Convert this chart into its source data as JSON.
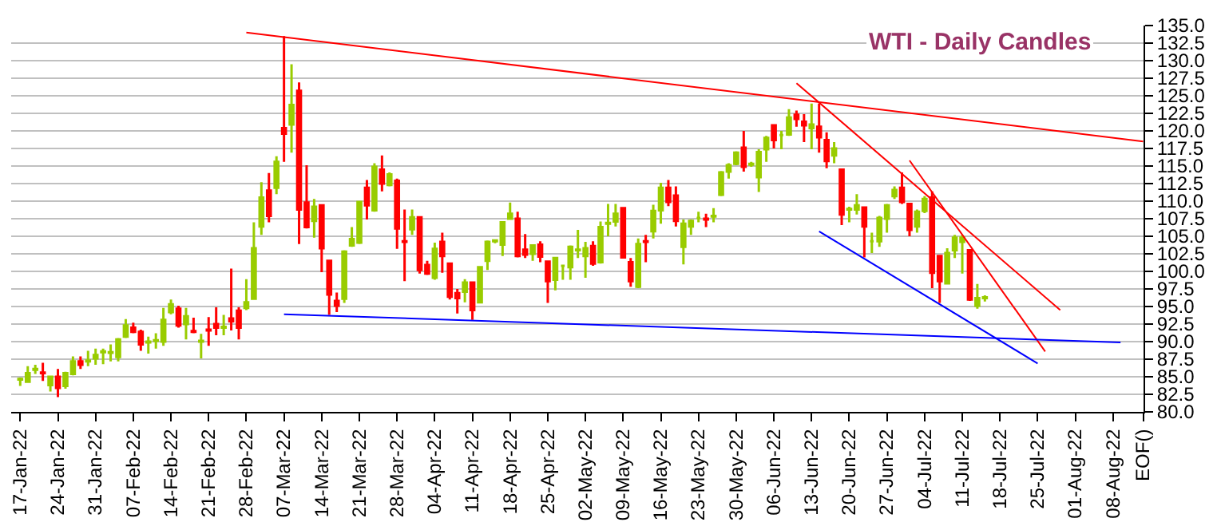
{
  "chart_data": {
    "type": "candlestick",
    "title": "WTI - Daily Candles",
    "categories": [
      "17-Jan-22",
      null,
      null,
      null,
      null,
      "24-Jan-22",
      null,
      null,
      null,
      null,
      "31-Jan-22",
      null,
      null,
      null,
      null,
      "07-Feb-22",
      null,
      null,
      null,
      null,
      "14-Feb-22",
      null,
      null,
      null,
      null,
      "21-Feb-22",
      null,
      null,
      null,
      null,
      "28-Feb-22",
      null,
      null,
      null,
      null,
      "07-Mar-22",
      null,
      null,
      null,
      null,
      "14-Mar-22",
      null,
      null,
      null,
      null,
      "21-Mar-22",
      null,
      null,
      null,
      null,
      "28-Mar-22",
      null,
      null,
      null,
      null,
      "04-Apr-22",
      null,
      null,
      null,
      null,
      "11-Apr-22",
      null,
      null,
      null,
      null,
      "18-Apr-22",
      null,
      null,
      null,
      null,
      "25-Apr-22",
      null,
      null,
      null,
      null,
      "02-May-22",
      null,
      null,
      null,
      null,
      "09-May-22",
      null,
      null,
      null,
      null,
      "16-May-22",
      null,
      null,
      null,
      null,
      "23-May-22",
      null,
      null,
      null,
      null,
      "30-May-22",
      null,
      null,
      null,
      null,
      "06-Jun-22",
      null,
      null,
      null,
      null,
      "13-Jun-22",
      null,
      null,
      null,
      null,
      "20-Jun-22",
      null,
      null,
      null,
      null,
      "27-Jun-22",
      null,
      null,
      null,
      null,
      "04-Jul-22",
      null,
      null,
      null,
      null,
      "11-Jul-22",
      null,
      null,
      null,
      null,
      "18-Jul-22",
      null,
      null,
      null,
      null,
      "25-Jul-22",
      null,
      null,
      null,
      null,
      "01-Aug-22",
      null,
      null,
      null,
      null,
      "08-Aug-22",
      null,
      null,
      null,
      "EOF()"
    ],
    "ohlc": [
      [
        84.6,
        84.9,
        83.7,
        84.7
      ],
      [
        84.3,
        86.5,
        84.2,
        85.5
      ],
      [
        86.0,
        86.7,
        85.4,
        86.1
      ],
      [
        85.6,
        87.0,
        84.4,
        85.5
      ],
      [
        83.8,
        85.1,
        82.9,
        85.0
      ],
      [
        85.0,
        86.1,
        82.1,
        83.4
      ],
      [
        83.7,
        85.7,
        83.3,
        85.5
      ],
      [
        85.4,
        87.9,
        85.2,
        87.2
      ],
      [
        87.2,
        87.9,
        86.1,
        86.7
      ],
      [
        87.2,
        88.7,
        86.5,
        87.3
      ],
      [
        87.6,
        89.0,
        86.7,
        88.1
      ],
      [
        88.5,
        89.0,
        86.8,
        88.6
      ],
      [
        88.4,
        89.6,
        87.2,
        88.5
      ],
      [
        87.8,
        90.5,
        87.2,
        90.3
      ],
      [
        90.7,
        93.2,
        90.5,
        92.3
      ],
      [
        92.0,
        92.7,
        91.2,
        91.4
      ],
      [
        91.4,
        91.7,
        88.7,
        89.6
      ],
      [
        89.9,
        90.7,
        88.3,
        90.0
      ],
      [
        90.1,
        91.2,
        89.0,
        90.2
      ],
      [
        90.0,
        94.8,
        89.4,
        93.1
      ],
      [
        94.2,
        96.0,
        93.9,
        95.3
      ],
      [
        94.7,
        95.1,
        92.0,
        92.3
      ],
      [
        92.5,
        94.8,
        90.3,
        93.6
      ],
      [
        91.5,
        93.4,
        91.2,
        91.4
      ],
      [
        90.0,
        91.1,
        87.6,
        90.1
      ],
      [
        91.7,
        93.5,
        89.4,
        91.6
      ],
      [
        92.5,
        94.9,
        90.9,
        92.0
      ],
      [
        92.0,
        93.8,
        90.9,
        92.1
      ],
      [
        93.3,
        100.4,
        91.6,
        92.9
      ],
      [
        94.4,
        94.9,
        90.3,
        92.0
      ],
      [
        94.8,
        98.9,
        94.5,
        95.6
      ],
      [
        96.1,
        107.0,
        96.1,
        103.3
      ],
      [
        106.4,
        112.7,
        105.2,
        110.5
      ],
      [
        111.5,
        114.0,
        107.0,
        107.9
      ],
      [
        111.9,
        116.4,
        111.0,
        115.6
      ],
      [
        120.4,
        133.5,
        115.6,
        119.6
      ],
      [
        120.9,
        129.5,
        116.9,
        123.7
      ],
      [
        125.7,
        126.9,
        103.9,
        108.8
      ],
      [
        109.8,
        115.1,
        106.1,
        106.3
      ],
      [
        107.2,
        110.3,
        104.8,
        109.2
      ],
      [
        109.4,
        109.5,
        99.9,
        103.3
      ],
      [
        101.5,
        101.6,
        93.8,
        96.7
      ],
      [
        95.8,
        97.0,
        94.2,
        95.1
      ],
      [
        96.1,
        103.0,
        95.5,
        102.8
      ],
      [
        103.7,
        106.3,
        103.5,
        104.6
      ],
      [
        104.1,
        110.0,
        103.9,
        109.9
      ],
      [
        111.9,
        113.0,
        107.4,
        109.4
      ],
      [
        108.7,
        115.4,
        108.5,
        114.9
      ],
      [
        114.5,
        116.5,
        111.4,
        112.5
      ],
      [
        112.3,
        114.1,
        112.1,
        113.8
      ],
      [
        112.9,
        113.2,
        103.2,
        106.1
      ],
      [
        104.3,
        108.8,
        98.6,
        104.2
      ],
      [
        106.0,
        108.8,
        105.2,
        107.7
      ],
      [
        107.7,
        107.8,
        99.7,
        100.2
      ],
      [
        100.9,
        101.5,
        99.5,
        99.7
      ],
      [
        99.1,
        104.1,
        98.8,
        103.2
      ],
      [
        104.2,
        105.5,
        99.8,
        102.2
      ],
      [
        101.1,
        101.2,
        96.0,
        96.4
      ],
      [
        96.9,
        97.5,
        94.0,
        96.2
      ],
      [
        97.1,
        98.9,
        95.6,
        98.4
      ],
      [
        98.4,
        98.5,
        93.1,
        94.5
      ],
      [
        95.6,
        100.7,
        95.5,
        100.6
      ],
      [
        101.5,
        104.4,
        100.2,
        104.2
      ],
      [
        104.3,
        104.4,
        104.0,
        104.4
      ],
      [
        103.8,
        107.1,
        102.2,
        107.0
      ],
      [
        107.5,
        109.8,
        107.4,
        108.2
      ],
      [
        107.5,
        108.5,
        102.0,
        102.2
      ],
      [
        103.1,
        105.3,
        101.9,
        102.4
      ],
      [
        102.5,
        103.8,
        101.5,
        103.7
      ],
      [
        103.8,
        104.3,
        101.3,
        102.1
      ],
      [
        101.4,
        101.5,
        95.5,
        98.6
      ],
      [
        98.8,
        102.0,
        97.3,
        101.9
      ],
      [
        100.8,
        100.9,
        98.8,
        100.8
      ],
      [
        100.6,
        103.7,
        98.8,
        103.5
      ],
      [
        103.0,
        105.9,
        101.9,
        103.1
      ],
      [
        102.2,
        104.2,
        99.1,
        103.3
      ],
      [
        103.6,
        104.3,
        100.8,
        101.1
      ],
      [
        101.3,
        107.1,
        101.1,
        106.3
      ],
      [
        106.8,
        109.6,
        105.0,
        106.9
      ],
      [
        107.1,
        109.6,
        106.4,
        108.2
      ],
      [
        109.0,
        109.1,
        101.9,
        102.0
      ],
      [
        101.3,
        101.9,
        97.8,
        98.6
      ],
      [
        97.8,
        104.7,
        97.6,
        103.9
      ],
      [
        104.3,
        105.2,
        101.3,
        104.2
      ],
      [
        105.7,
        109.5,
        104.7,
        108.6
      ],
      [
        108.7,
        112.6,
        106.8,
        111.9
      ],
      [
        111.9,
        113.0,
        109.3,
        109.9
      ],
      [
        110.8,
        112.1,
        106.4,
        107.2
      ],
      [
        103.5,
        107.4,
        101.0,
        106.8
      ],
      [
        106.4,
        107.4,
        105.2,
        107.2
      ],
      [
        107.6,
        108.5,
        107.0,
        107.6
      ],
      [
        107.5,
        108.2,
        106.3,
        107.4
      ],
      [
        107.8,
        109.0,
        107.0,
        107.9
      ],
      [
        110.9,
        114.3,
        110.7,
        114.1
      ],
      [
        114.2,
        115.4,
        113.2,
        115.1
      ],
      [
        115.3,
        117.1,
        115.1,
        116.9
      ],
      [
        117.6,
        120.0,
        114.2,
        114.9
      ],
      [
        115.2,
        115.6,
        114.9,
        115.3
      ],
      [
        113.4,
        117.4,
        111.3,
        117.0
      ],
      [
        117.4,
        119.3,
        115.6,
        119.0
      ],
      [
        120.8,
        120.9,
        117.5,
        118.7
      ],
      [
        119.4,
        120.0,
        117.4,
        119.4
      ],
      [
        119.5,
        123.1,
        119.3,
        121.9
      ],
      [
        122.3,
        122.9,
        120.6,
        121.7
      ],
      [
        121.3,
        122.4,
        118.4,
        120.8
      ],
      [
        120.4,
        123.9,
        117.4,
        120.9
      ],
      [
        120.6,
        123.9,
        116.9,
        119.1
      ],
      [
        118.7,
        119.8,
        114.7,
        115.7
      ],
      [
        116.5,
        118.4,
        115.4,
        117.5
      ],
      [
        114.5,
        114.6,
        106.6,
        108.1
      ],
      [
        108.8,
        109.2,
        107.0,
        108.9
      ],
      [
        108.8,
        111.0,
        108.1,
        109.4
      ],
      [
        109.1,
        109.2,
        102.0,
        106.4
      ],
      [
        104.3,
        105.5,
        102.6,
        104.3
      ],
      [
        104.3,
        107.9,
        103.5,
        107.6
      ],
      [
        107.5,
        109.6,
        105.5,
        109.4
      ],
      [
        110.7,
        112.1,
        110.3,
        111.6
      ],
      [
        111.9,
        114.1,
        109.6,
        109.9
      ],
      [
        109.6,
        109.7,
        105.0,
        105.9
      ],
      [
        106.4,
        108.8,
        105.5,
        108.5
      ],
      [
        108.6,
        110.7,
        108.3,
        110.3
      ],
      [
        110.5,
        111.4,
        97.6,
        99.8
      ],
      [
        102.2,
        102.3,
        95.5,
        98.6
      ],
      [
        98.3,
        103.3,
        98.2,
        102.6
      ],
      [
        103.0,
        105.2,
        101.9,
        104.8
      ],
      [
        104.2,
        105.2,
        99.7,
        104.8
      ],
      [
        103.0,
        103.1,
        95.8,
        96.0
      ],
      [
        95.1,
        98.2,
        94.7,
        96.2
      ],
      [
        96.2,
        96.6,
        95.7,
        96.3
      ],
      null,
      null,
      null,
      null,
      null,
      null,
      null,
      null,
      null,
      null,
      null,
      null,
      null,
      null,
      null,
      null,
      null,
      null,
      null,
      null,
      null
    ],
    "colors": [
      "#99cc00",
      "#99cc00",
      "#99cc00",
      "#ff0000",
      "#99cc00",
      "#ff0000",
      "#99cc00",
      "#99cc00",
      "#ff0000",
      "#99cc00",
      "#99cc00",
      "#99cc00",
      "#99cc00",
      "#99cc00",
      "#99cc00",
      "#ff0000",
      "#ff0000",
      "#99cc00",
      "#99cc00",
      "#99cc00",
      "#99cc00",
      "#ff0000",
      "#99cc00",
      "#ff0000",
      "#99cc00",
      "#ff0000",
      "#ff0000",
      "#99cc00",
      "#ff0000",
      "#ff0000",
      "#99cc00",
      "#99cc00",
      "#99cc00",
      "#ff0000",
      "#99cc00",
      "#ff0000",
      "#99cc00",
      "#ff0000",
      "#ff0000",
      "#99cc00",
      "#ff0000",
      "#ff0000",
      "#ff0000",
      "#99cc00",
      "#99cc00",
      "#99cc00",
      "#ff0000",
      "#99cc00",
      "#ff0000",
      "#99cc00",
      "#ff0000",
      "#ff0000",
      "#99cc00",
      "#ff0000",
      "#ff0000",
      "#99cc00",
      "#ff0000",
      "#ff0000",
      "#ff0000",
      "#99cc00",
      "#ff0000",
      "#99cc00",
      "#99cc00",
      "#99cc00",
      "#99cc00",
      "#99cc00",
      "#ff0000",
      "#ff0000",
      "#99cc00",
      "#ff0000",
      "#ff0000",
      "#99cc00",
      "#99cc00",
      "#99cc00",
      "#99cc00",
      "#99cc00",
      "#ff0000",
      "#99cc00",
      "#99cc00",
      "#99cc00",
      "#ff0000",
      "#ff0000",
      "#99cc00",
      "#ff0000",
      "#99cc00",
      "#99cc00",
      "#ff0000",
      "#ff0000",
      "#99cc00",
      "#99cc00",
      "#99cc00",
      "#ff0000",
      "#99cc00",
      "#99cc00",
      "#99cc00",
      "#99cc00",
      "#ff0000",
      "#99cc00",
      "#99cc00",
      "#99cc00",
      "#ff0000",
      "#99cc00",
      "#99cc00",
      "#ff0000",
      "#ff0000",
      "#99cc00",
      "#ff0000",
      "#ff0000",
      "#99cc00",
      "#ff0000",
      "#99cc00",
      "#99cc00",
      "#ff0000",
      "#99cc00",
      "#99cc00",
      "#99cc00",
      "#99cc00",
      "#ff0000",
      "#ff0000",
      "#99cc00",
      "#99cc00",
      "#ff0000",
      "#ff0000",
      "#99cc00",
      "#99cc00",
      "#99cc00",
      "#ff0000",
      "#99cc00",
      "#99cc00",
      null,
      null,
      null,
      null,
      null,
      null,
      null,
      null,
      null,
      null,
      null,
      null,
      null,
      null,
      null,
      null,
      null,
      null,
      null,
      null,
      null
    ],
    "series": [
      {
        "type": "line",
        "color": "#ff0000",
        "values": [
          null,
          null,
          null,
          null,
          null,
          null,
          null,
          null,
          null,
          null,
          null,
          null,
          null,
          null,
          null,
          null,
          null,
          null,
          null,
          null,
          null,
          null,
          null,
          null,
          null,
          null,
          null,
          null,
          null,
          null,
          134.0,
          null,
          null,
          null,
          null,
          null,
          null,
          null,
          null,
          null,
          null,
          null,
          null,
          null,
          null,
          null,
          null,
          null,
          null,
          null,
          null,
          null,
          null,
          null,
          null,
          null,
          null,
          null,
          null,
          null,
          null,
          null,
          null,
          null,
          null,
          null,
          null,
          null,
          null,
          null,
          null,
          null,
          null,
          null,
          null,
          null,
          null,
          null,
          null,
          null,
          null,
          null,
          null,
          null,
          null,
          null,
          null,
          null,
          null,
          null,
          null,
          null,
          null,
          null,
          null,
          null,
          null,
          null,
          null,
          null,
          null,
          null,
          null,
          null,
          null,
          null,
          null,
          null,
          null,
          null,
          null,
          null,
          null,
          null,
          null,
          null,
          null,
          null,
          null,
          null,
          null,
          null,
          null,
          null,
          null,
          null,
          null,
          null,
          null,
          null,
          null,
          null,
          null,
          null,
          null,
          null,
          null,
          null,
          null,
          null,
          null,
          null,
          null,
          null,
          null,
          null,
          null,
          null,
          null,
          118.5
        ]
      },
      {
        "type": "line",
        "color": "#ff0000",
        "values": [
          null,
          null,
          null,
          null,
          null,
          null,
          null,
          null,
          null,
          null,
          null,
          null,
          null,
          null,
          null,
          null,
          null,
          null,
          null,
          null,
          null,
          null,
          null,
          null,
          null,
          null,
          null,
          null,
          null,
          null,
          null,
          null,
          null,
          null,
          null,
          null,
          null,
          null,
          null,
          null,
          null,
          null,
          null,
          null,
          null,
          null,
          null,
          null,
          null,
          null,
          null,
          null,
          null,
          null,
          null,
          null,
          null,
          null,
          null,
          null,
          null,
          null,
          null,
          null,
          null,
          null,
          null,
          null,
          null,
          null,
          null,
          null,
          null,
          null,
          null,
          null,
          null,
          null,
          null,
          null,
          null,
          null,
          null,
          null,
          null,
          null,
          null,
          null,
          null,
          null,
          null,
          null,
          null,
          null,
          null,
          null,
          null,
          null,
          null,
          null,
          null,
          null,
          null,
          126.8,
          null,
          null,
          null,
          null,
          null,
          null,
          null,
          null,
          null,
          null,
          null,
          null,
          null,
          null,
          null,
          null,
          null,
          null,
          null,
          null,
          null,
          null,
          null,
          null,
          null,
          null,
          null,
          null,
          null,
          null,
          null,
          null,
          null,
          null,
          94.5,
          null,
          null,
          null,
          null,
          null,
          null,
          null,
          null,
          null,
          null,
          null
        ]
      },
      {
        "type": "line",
        "color": "#ff0000",
        "values": [
          null,
          null,
          null,
          null,
          null,
          null,
          null,
          null,
          null,
          null,
          null,
          null,
          null,
          null,
          null,
          null,
          null,
          null,
          null,
          null,
          null,
          null,
          null,
          null,
          null,
          null,
          null,
          null,
          null,
          null,
          null,
          null,
          null,
          null,
          null,
          null,
          null,
          null,
          null,
          null,
          null,
          null,
          null,
          null,
          null,
          null,
          null,
          null,
          null,
          null,
          null,
          null,
          null,
          null,
          null,
          null,
          null,
          null,
          null,
          null,
          null,
          null,
          null,
          null,
          null,
          null,
          null,
          null,
          null,
          null,
          null,
          null,
          null,
          null,
          null,
          null,
          null,
          null,
          null,
          null,
          null,
          null,
          null,
          null,
          null,
          null,
          null,
          null,
          null,
          null,
          null,
          null,
          null,
          null,
          null,
          null,
          null,
          null,
          null,
          null,
          null,
          null,
          null,
          null,
          null,
          null,
          null,
          null,
          null,
          null,
          null,
          null,
          null,
          null,
          null,
          null,
          null,
          null,
          115.8,
          null,
          null,
          null,
          null,
          null,
          null,
          null,
          null,
          null,
          null,
          null,
          null,
          null,
          null,
          null,
          null,
          null,
          88.6,
          null,
          null,
          null,
          null,
          null,
          null,
          null,
          null,
          null,
          null,
          null,
          null,
          null
        ]
      },
      {
        "type": "line",
        "color": "#0000ff",
        "values": [
          null,
          null,
          null,
          null,
          null,
          null,
          null,
          null,
          null,
          null,
          null,
          null,
          null,
          null,
          null,
          null,
          null,
          null,
          null,
          null,
          null,
          null,
          null,
          null,
          null,
          null,
          null,
          null,
          null,
          null,
          null,
          null,
          null,
          null,
          null,
          null,
          null,
          null,
          null,
          null,
          null,
          null,
          null,
          null,
          null,
          null,
          null,
          null,
          null,
          null,
          null,
          null,
          null,
          null,
          null,
          null,
          null,
          null,
          null,
          null,
          null,
          null,
          null,
          null,
          null,
          null,
          null,
          null,
          null,
          null,
          null,
          null,
          null,
          null,
          null,
          null,
          null,
          null,
          null,
          null,
          null,
          null,
          null,
          null,
          null,
          null,
          null,
          null,
          null,
          null,
          null,
          null,
          null,
          null,
          null,
          null,
          null,
          null,
          null,
          null,
          null,
          null,
          null,
          null,
          null,
          null,
          105.7,
          null,
          null,
          null,
          null,
          null,
          null,
          null,
          null,
          null,
          null,
          null,
          null,
          null,
          null,
          null,
          null,
          null,
          null,
          null,
          null,
          null,
          null,
          null,
          null,
          null,
          null,
          null,
          null,
          86.9,
          null,
          null,
          null,
          null,
          null,
          null,
          null,
          null,
          null,
          null,
          null,
          null,
          null,
          null
        ]
      },
      {
        "type": "line",
        "color": "#0000ff",
        "values": [
          null,
          null,
          null,
          null,
          null,
          null,
          null,
          null,
          null,
          null,
          null,
          null,
          null,
          null,
          null,
          null,
          null,
          null,
          null,
          null,
          null,
          null,
          null,
          null,
          null,
          null,
          null,
          null,
          null,
          null,
          null,
          null,
          null,
          null,
          null,
          93.9,
          null,
          null,
          null,
          null,
          null,
          null,
          null,
          null,
          null,
          null,
          null,
          null,
          null,
          null,
          null,
          null,
          null,
          null,
          null,
          null,
          null,
          null,
          null,
          null,
          null,
          null,
          null,
          null,
          null,
          null,
          null,
          null,
          null,
          null,
          null,
          null,
          null,
          null,
          null,
          null,
          null,
          null,
          null,
          null,
          null,
          null,
          null,
          null,
          null,
          null,
          null,
          null,
          null,
          null,
          null,
          null,
          null,
          null,
          null,
          null,
          null,
          null,
          null,
          null,
          null,
          null,
          null,
          null,
          null,
          null,
          null,
          null,
          null,
          null,
          null,
          null,
          null,
          null,
          null,
          null,
          null,
          null,
          null,
          null,
          null,
          null,
          null,
          null,
          null,
          null,
          null,
          null,
          null,
          null,
          null,
          null,
          null,
          null,
          null,
          null,
          null,
          null,
          null,
          null,
          null,
          null,
          null,
          null,
          null,
          null,
          89.9,
          null,
          null,
          null
        ]
      }
    ],
    "ylim": [
      80,
      135
    ],
    "yticks": [
      {
        "value": 80,
        "label": "80.0"
      },
      {
        "value": 82.5,
        "label": "82.5"
      },
      {
        "value": 85,
        "label": "85.0"
      },
      {
        "value": 87.5,
        "label": "87.5"
      },
      {
        "value": 90,
        "label": "90.0"
      },
      {
        "value": 92.5,
        "label": "92.5"
      },
      {
        "value": 95,
        "label": "95.0"
      },
      {
        "value": 97.5,
        "label": "97.5"
      },
      {
        "value": 100,
        "label": "100.0"
      },
      {
        "value": 102.5,
        "label": "102.5"
      },
      {
        "value": 105,
        "label": "105.0"
      },
      {
        "value": 107.5,
        "label": "107.5"
      },
      {
        "value": 110,
        "label": "110.0"
      },
      {
        "value": 112.5,
        "label": "112.5"
      },
      {
        "value": 115,
        "label": "115.0"
      },
      {
        "value": 117.5,
        "label": "117.5"
      },
      {
        "value": 120,
        "label": "120.0"
      },
      {
        "value": 122.5,
        "label": "122.5"
      },
      {
        "value": 125,
        "label": "125.0"
      },
      {
        "value": 127.5,
        "label": "127.5"
      },
      {
        "value": 130,
        "label": "130.0"
      },
      {
        "value": 132.5,
        "label": "132.5"
      },
      {
        "value": 135,
        "label": "135.0"
      }
    ],
    "grid": "y"
  }
}
